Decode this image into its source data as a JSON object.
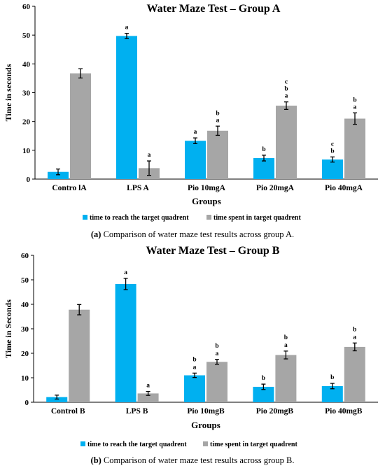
{
  "chart_data": [
    {
      "type": "bar",
      "title": "Water Maze Test – Group A",
      "xlabel": "Groups",
      "ylabel": "Time in seconds",
      "ylim": [
        0,
        60
      ],
      "yticks": [
        "0",
        "10",
        "20",
        "30",
        "40",
        "50",
        "60"
      ],
      "categories": [
        "Contro lA",
        "LPS A",
        "Pio 10mgA",
        "Pio 20mgA",
        "Pio 40mgA"
      ],
      "series": [
        {
          "name": "time to reach the target quadrent",
          "color": "#00B0F0",
          "values": [
            2.5,
            49.7,
            13.3,
            7.3,
            6.8
          ],
          "errors": [
            1.0,
            0.9,
            1.0,
            1.0,
            0.9
          ],
          "annotations": [
            "",
            "a",
            "a",
            "b",
            "c b"
          ]
        },
        {
          "name": "time spent in target quadrent",
          "color": "#A6A6A6",
          "values": [
            36.7,
            3.8,
            16.8,
            25.5,
            21.0
          ],
          "errors": [
            1.6,
            2.5,
            1.6,
            1.3,
            2.0
          ],
          "annotations": [
            "",
            "a",
            "b a",
            "c b a",
            "b a"
          ]
        }
      ],
      "legend_position": "bottom",
      "grid": false
    },
    {
      "type": "bar",
      "title": "Water Maze Test – Group B",
      "xlabel": "Groups",
      "ylabel": "Time in Seconds",
      "ylim": [
        0,
        60
      ],
      "yticks": [
        "0",
        "10",
        "20",
        "30",
        "40",
        "50",
        "60"
      ],
      "categories": [
        "Control B",
        "LPS B",
        "Pio 10mgB",
        "Pio 20mgB",
        "Pio 40mgB"
      ],
      "series": [
        {
          "name": "time to reach the target quadrent",
          "color": "#00B0F0",
          "values": [
            2.1,
            48.3,
            11.0,
            6.3,
            6.6
          ],
          "errors": [
            0.8,
            2.3,
            0.9,
            1.1,
            1.1
          ],
          "annotations": [
            "",
            "a",
            "b a",
            "b",
            "b"
          ]
        },
        {
          "name": "time spent in target quadrent",
          "color": "#A6A6A6",
          "values": [
            37.8,
            3.6,
            16.5,
            19.3,
            22.6
          ],
          "errors": [
            2.1,
            0.8,
            1.0,
            1.6,
            1.6
          ],
          "annotations": [
            "",
            "a",
            "b a",
            "b a",
            "b a"
          ]
        }
      ],
      "legend_position": "bottom",
      "grid": false
    }
  ],
  "captions": [
    {
      "label": "(a)",
      "text": " Comparison of water maze test results across group A."
    },
    {
      "label": "(b)",
      "text": " Comparison of water maze test results across group B."
    }
  ]
}
